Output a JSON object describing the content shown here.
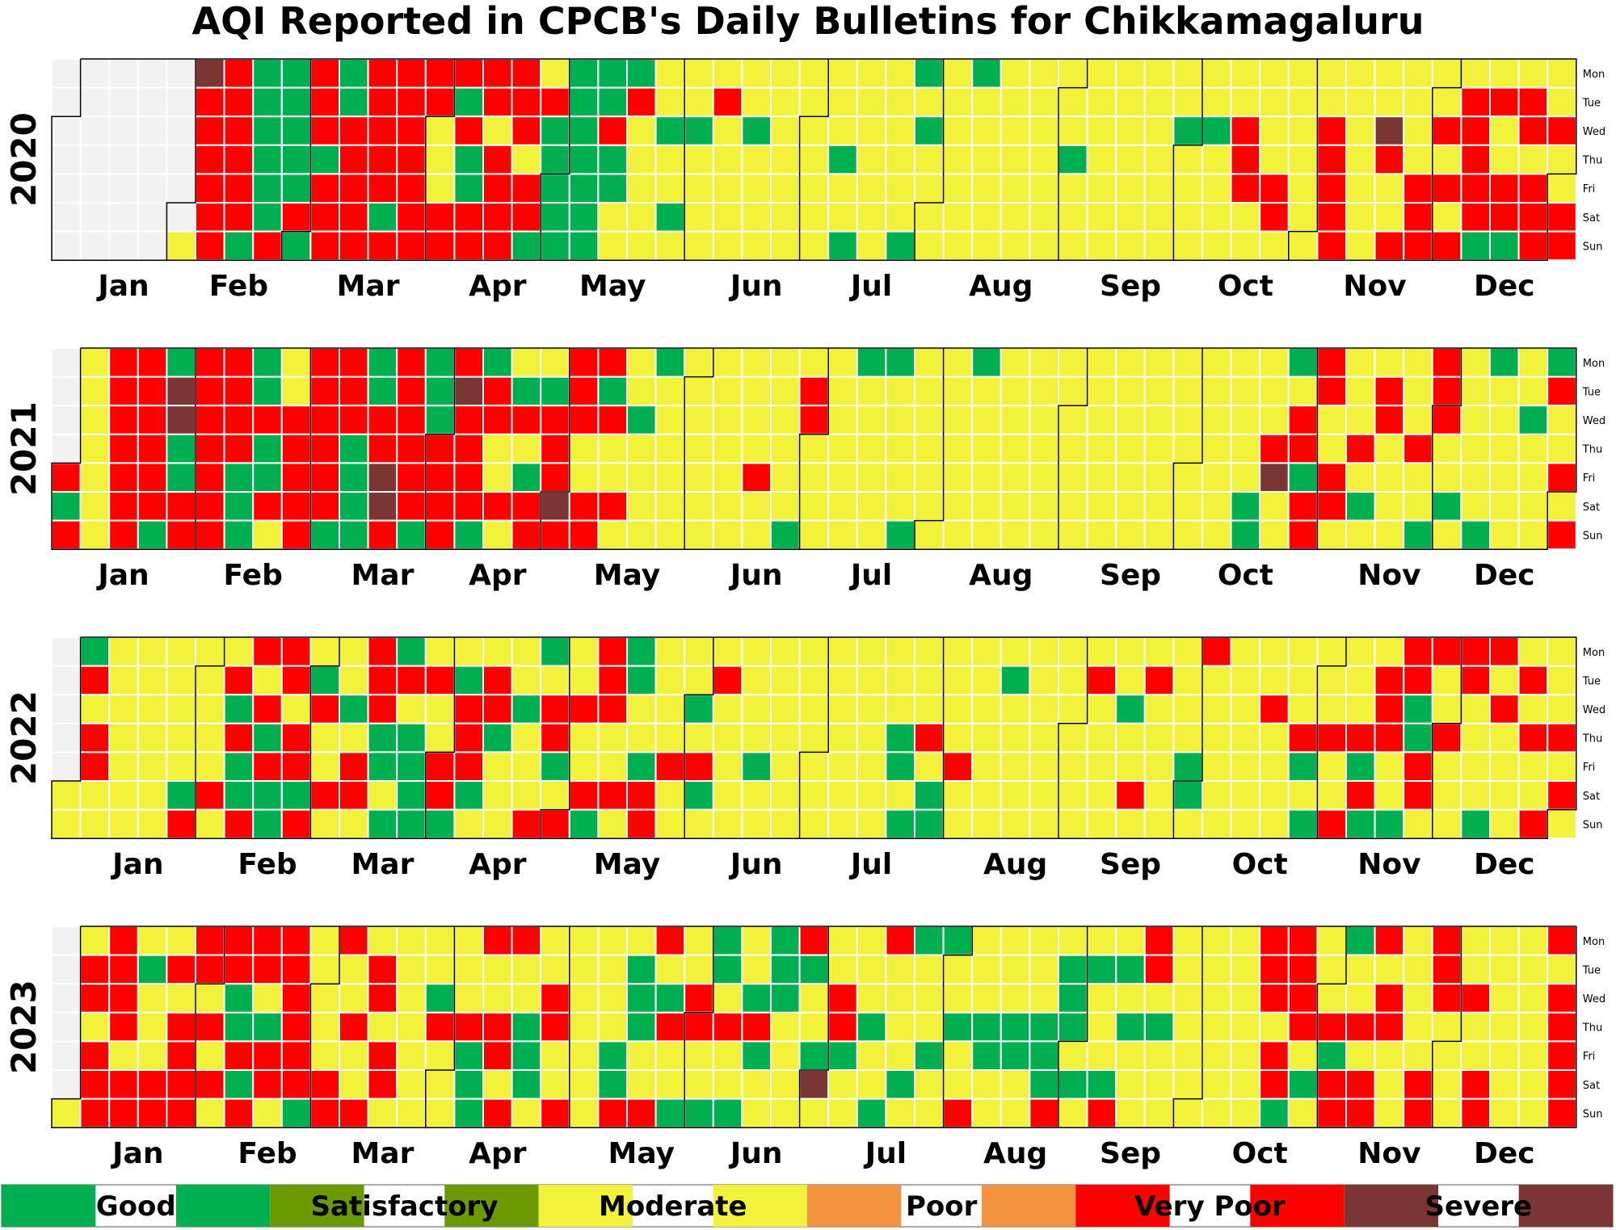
{
  "chart_data": {
    "type": "heatmap",
    "title": "AQI Reported in CPCB's Daily Bulletins for Chikkamagaluru",
    "weekdays": [
      "Mon",
      "Tue",
      "Wed",
      "Thu",
      "Fri",
      "Sat",
      "Sun"
    ],
    "months": [
      "Jan",
      "Feb",
      "Mar",
      "Apr",
      "May",
      "Jun",
      "Jul",
      "Aug",
      "Sep",
      "Oct",
      "Nov",
      "Dec"
    ],
    "categories": [
      {
        "code": "G",
        "name": "Good",
        "color": "#00b050"
      },
      {
        "code": "S",
        "name": "Satisfactory",
        "color": "#6a9a00"
      },
      {
        "code": "M",
        "name": "Moderate",
        "color": "#f2f23a"
      },
      {
        "code": "P",
        "name": "Poor",
        "color": "#f39340"
      },
      {
        "code": "V",
        "name": "Very Poor",
        "color": "#ff0000"
      },
      {
        "code": "X",
        "name": "Severe",
        "color": "#7b3535"
      }
    ],
    "no_data_color": "#f2f2f2",
    "years": [
      {
        "year": "2020",
        "jan1_weekday": 2,
        "grid": {
          "Mon": "NNNNNXVGGVGVVVVVVMGGGMMMMMMMMMGMGMMMMMMMMMMMMMMMMMMMMVVMVGMVMGG",
          "Tue": "NNNNNVVGGVGVVVGVVVGGVMMVMMMMMMMMMMMMMMMMMMMMMMMMMVVVMXMGVMVVMG",
          "Wed": "NNNNNVVGGVVVVMVMVGGVMGGMGMMMMMGMMMMMMMMGGVMMVMXMVVMVVMV",
          "Thu": "NNNNNVVGGGVVVMGVMGGGMMMMMMMGMMMMMMMGMMMMMVMMVMVMMVMMMM",
          "Fri": "NNNNNVVGGVVVVMGVVGGGMMMMMMMMMMMMMMMMMMMMMVVMVMMVVVVVM",
          "Sat": "NNNNNVVGVVVGVVVVVGGMMGMMMMMMMMMMMMMMMMMMMMVMVMMVMVVVVM",
          "Sun": "NNNNMVGVGVVVVVVVGGGMMMMMMMMGMGMMMMMMMMMMMMMMVMVVVGGVVVG"
        }
      },
      {
        "year": "2021",
        "jan1_weekday": 4,
        "grid": {
          "Mon": "NMVVGVVGMVVGVGVGMMVVMGMMMMMMGGMMGMMMMMMMMMMGVMMMVMGMGMMG",
          "Tue": "NMVVXVVGMVVGVGXVGGVGMMMMMMVMMMMMMMMMMMMMMMMMVMVMVMMMVMMM",
          "Wed": "NMVVXVVVVVVVVGVVVVVVGMMMMMVMMMMMMMMMMMMMMMMVMMVMVMMGMMVM",
          "Thu": "NMVVGVVGVVGVVVVMMVMMMMMMMMMMMMMMMMMMMMMMMMVVMVMVMMMMMVM",
          "Fri": "VMVVGVGGVVGXVVVMGVMMMMMMVMMMMMMMMMMMMMMMMMXGVMMMMMMMVVM",
          "Sat": "GMVVVVGVVVGXVVVVVXVVMMMMMMMMMMMMMMMMMMMMMGMVVGMMGMMMMMG",
          "Sun": "VMVGVVGMVGGVGVGMVVVMMMMMMGMMMGMMMMMMMMMMMGMVMMMGMGMMVVM"
        }
      },
      {
        "year": "2022",
        "jan1_weekday": 5,
        "grid": {
          "Mon": "NGMMMMMVVMMVGMMMMGMVGMMMMMMMMMMMMMMMMMMMVMMMMMMVVVVMMMVMMMM",
          "Tue": "NVMMMMVMVGMVVVGVMMMVGMMVMMMMMMMMMGMMVMVMMMMMMMVVMVMVMMMMM",
          "Wed": "NMMMMMGVMVGVMMVVGVVVMMGMMMMMMMMMMMMMMGMMMMVMMMVGMMVMMMMM",
          "Thu": "NVMMMMVGVMMGGMVGMVMMMMMMMMMMMGVMMMMMMMMMMMMVVVVGVMMVVMMGM",
          "Fri": "NVMMMMGVVMVGGVVMMGMMGVVMGMMMMGMVMMMMMMMGMMMGMGMVMMMMMVMMMM",
          "Sat": "MMMMGVGGGVVMGVGMMMVVVMGMMMMMMMGMMMMMMVMGMMMMMVMVMMMMVMVM",
          "Sun": "MMMMVMVGVMMGGGMMVVGMVMMMMMMMMGGMMMMMMMMMMMMGVGGMMGMVMMMM"
        }
      },
      {
        "year": "2023",
        "jan1_weekday": 6,
        "grid": {
          "Mon": "NMVMMVVVVMVMMMMVVMMMMVMGMGVMMVGGMMMMMMVMMMVVMGVMVMMMVVM",
          "Tue": "NVVGVVVVVMMVMMMMMMMMGMMGMGGMMMMMMMMGGGVMMMVVMMMMVMMMMVVM",
          "Wed": "NVVMMMGMVMMVMGMMMVMMGGVMGGMVMMMMMMMGMMMMMMVVMMVMVVMMVVM",
          "Thu": "NMVMVVGGVMVMMVVVGVMMGVVVVMMVGMMGGGGGMGGMMMMVVVVMMMMMVVVM",
          "Fri": "NVMMVMVVVMMVMMGVGMMGMMMMGMGGMMGMGGGMMMMMMMVMGMMMMMMMVVVM",
          "Sat": "NVVVVVGVVVMVMMGMGMMGMMMMMMXMMGMMMMGGGMMMMMVGVVMVMVMMVVVM",
          "Sun": "MVVVVMVMGVVMMMGVMVMVVGGGMMMMGMMVMMVMVMMMMMGMVVMVMVMMVXVM"
        }
      }
    ],
    "legend": [
      {
        "code": "G",
        "label": "Good"
      },
      {
        "code": "S",
        "label": "Satisfactory"
      },
      {
        "code": "M",
        "label": "Moderate"
      },
      {
        "code": "P",
        "label": "Poor"
      },
      {
        "code": "V",
        "label": "Very Poor"
      },
      {
        "code": "X",
        "label": "Severe"
      }
    ]
  }
}
